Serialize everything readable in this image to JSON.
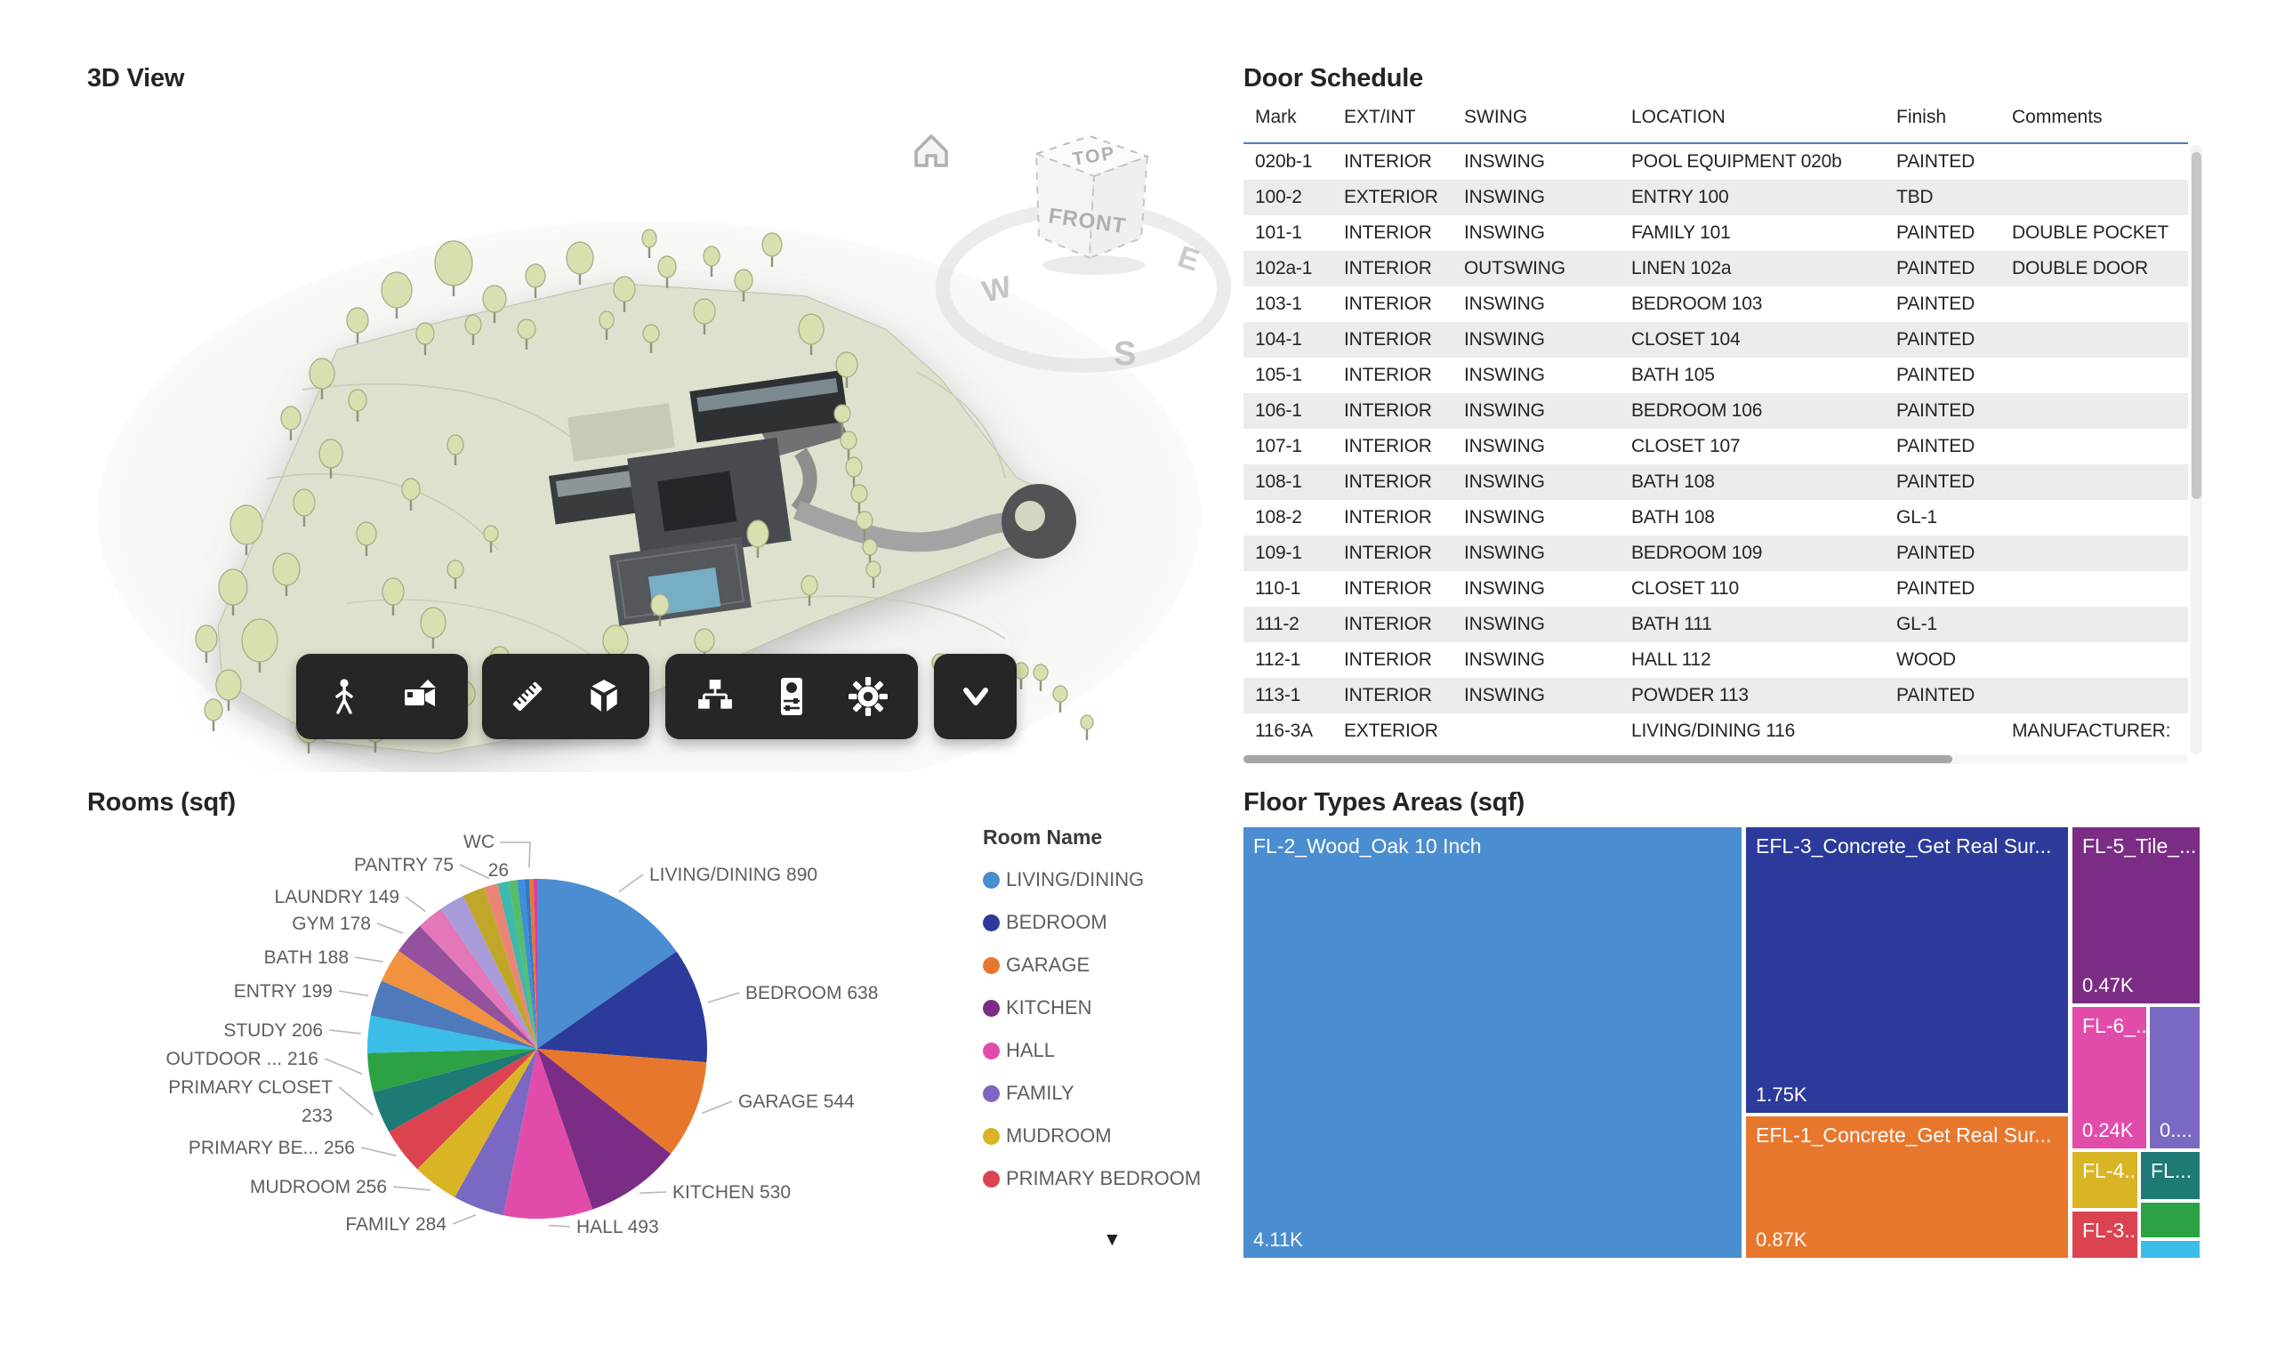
{
  "panels": {
    "view3d": {
      "title": "3D View",
      "home_icon": "home-icon",
      "view_cube": {
        "top": "TOP",
        "front": "FRONT",
        "west": "W",
        "east": "E",
        "south": "S"
      },
      "toolbar": {
        "groups": [
          {
            "icons": [
              "person-icon",
              "video-camera-icon"
            ]
          },
          {
            "icons": [
              "ruler-icon",
              "cube-3d-icon"
            ]
          },
          {
            "icons": [
              "hierarchy-icon",
              "properties-panel-icon",
              "gear-icon"
            ]
          },
          {
            "icons": [
              "chevron-down-icon"
            ]
          }
        ]
      }
    },
    "door_schedule": {
      "title": "Door Schedule",
      "columns": [
        "Mark",
        "EXT/INT",
        "SWING",
        "LOCATION",
        "Finish",
        "Comments"
      ],
      "rows": [
        [
          "020b-1",
          "INTERIOR",
          "INSWING",
          "POOL EQUIPMENT 020b",
          "PAINTED",
          ""
        ],
        [
          "100-2",
          "EXTERIOR",
          "INSWING",
          "ENTRY 100",
          "TBD",
          ""
        ],
        [
          "101-1",
          "INTERIOR",
          "INSWING",
          "FAMILY 101",
          "PAINTED",
          "DOUBLE POCKET"
        ],
        [
          "102a-1",
          "INTERIOR",
          "OUTSWING",
          "LINEN 102a",
          "PAINTED",
          "DOUBLE DOOR"
        ],
        [
          "103-1",
          "INTERIOR",
          "INSWING",
          "BEDROOM 103",
          "PAINTED",
          ""
        ],
        [
          "104-1",
          "INTERIOR",
          "INSWING",
          "CLOSET 104",
          "PAINTED",
          ""
        ],
        [
          "105-1",
          "INTERIOR",
          "INSWING",
          "BATH 105",
          "PAINTED",
          ""
        ],
        [
          "106-1",
          "INTERIOR",
          "INSWING",
          "BEDROOM 106",
          "PAINTED",
          ""
        ],
        [
          "107-1",
          "INTERIOR",
          "INSWING",
          "CLOSET 107",
          "PAINTED",
          ""
        ],
        [
          "108-1",
          "INTERIOR",
          "INSWING",
          "BATH 108",
          "PAINTED",
          ""
        ],
        [
          "108-2",
          "INTERIOR",
          "INSWING",
          "BATH 108",
          "GL-1",
          ""
        ],
        [
          "109-1",
          "INTERIOR",
          "INSWING",
          "BEDROOM 109",
          "PAINTED",
          ""
        ],
        [
          "110-1",
          "INTERIOR",
          "INSWING",
          "CLOSET 110",
          "PAINTED",
          ""
        ],
        [
          "111-2",
          "INTERIOR",
          "INSWING",
          "BATH 111",
          "GL-1",
          ""
        ],
        [
          "112-1",
          "INTERIOR",
          "INSWING",
          "HALL 112",
          "WOOD",
          ""
        ],
        [
          "113-1",
          "INTERIOR",
          "INSWING",
          "POWDER 113",
          "PAINTED",
          ""
        ],
        [
          "116-3A",
          "EXTERIOR",
          "",
          "LIVING/DINING 116",
          "",
          "MANUFACTURER:"
        ]
      ]
    },
    "rooms": {
      "title": "Rooms (sqf)",
      "legend_title": "Room Name",
      "legend": [
        {
          "label": "LIVING/DINING",
          "color": "#4A8DD0"
        },
        {
          "label": "BEDROOM",
          "color": "#2B3A9B"
        },
        {
          "label": "GARAGE",
          "color": "#E8772E"
        },
        {
          "label": "KITCHEN",
          "color": "#7B2D85"
        },
        {
          "label": "HALL",
          "color": "#E14CAB"
        },
        {
          "label": "FAMILY",
          "color": "#7A68C2"
        },
        {
          "label": "MUDROOM",
          "color": "#D9B526"
        },
        {
          "label": "PRIMARY BEDROOM",
          "color": "#DC4350"
        }
      ],
      "more_icon": "chevron-down-icon",
      "more_glyph": "▼"
    },
    "floor_types": {
      "title": "Floor Types Areas (sqf)"
    }
  },
  "chart_data": [
    {
      "type": "pie",
      "title": "Rooms (sqf)",
      "value_unit": "sqf",
      "legend_position": "right",
      "slices": [
        {
          "label": "LIVING/DINING",
          "value": 890,
          "color": "#4A8DD0"
        },
        {
          "label": "BEDROOM",
          "value": 638,
          "color": "#2B3A9B"
        },
        {
          "label": "GARAGE",
          "value": 544,
          "color": "#E8772E"
        },
        {
          "label": "KITCHEN",
          "value": 530,
          "color": "#7B2D85"
        },
        {
          "label": "HALL",
          "value": 493,
          "color": "#E14CAB"
        },
        {
          "label": "FAMILY",
          "value": 284,
          "color": "#7A68C2"
        },
        {
          "label": "MUDROOM",
          "value": 256,
          "color": "#D9B526"
        },
        {
          "label": "PRIMARY BE...",
          "value": 256,
          "color": "#DC4350"
        },
        {
          "label": "PRIMARY CLOSET",
          "value": 233,
          "color": "#1D7A74",
          "two_line": true
        },
        {
          "label": "OUTDOOR ...",
          "value": 216,
          "color": "#2CA244"
        },
        {
          "label": "STUDY",
          "value": 206,
          "color": "#3ABEE8"
        },
        {
          "label": "ENTRY",
          "value": 199,
          "color": "#4E79BC"
        },
        {
          "label": "BATH",
          "value": 188,
          "color": "#F0923F"
        },
        {
          "label": "GYM",
          "value": 178,
          "color": "#94519E"
        },
        {
          "label": "LAUNDRY",
          "value": 149,
          "color": "#E377B7"
        },
        {
          "label": "",
          "value": 140,
          "color": "#A89BD9",
          "estimated": true
        },
        {
          "label": "",
          "value": 125,
          "color": "#C0A72A",
          "estimated": true
        },
        {
          "label": "PANTRY",
          "value": 75,
          "color": "#EA8475"
        },
        {
          "label": "",
          "value": 60,
          "color": "#3FB8AD",
          "estimated": true
        },
        {
          "label": "",
          "value": 48,
          "color": "#56BD68",
          "estimated": true
        },
        {
          "label": "",
          "value": 40,
          "color": "#3E8ED8",
          "estimated": true
        },
        {
          "label": "WC",
          "value": 26,
          "color": "#2E7BC4",
          "two_line": true
        },
        {
          "label": "",
          "value": 24,
          "color": "#E8772E",
          "estimated": true
        },
        {
          "label": "",
          "value": 20,
          "color": "#D63FA6",
          "estimated": true
        }
      ]
    },
    {
      "type": "treemap",
      "title": "Floor Types Areas (sqf)",
      "items": [
        {
          "label": "FL-2_Wood_Oak 10 Inch",
          "value_label": "4.11K",
          "value": 4110,
          "color": "#4A8DD0"
        },
        {
          "label": "EFL-3_Concrete_Get Real Sur...",
          "value_label": "1.75K",
          "value": 1750,
          "color": "#2B3A9B"
        },
        {
          "label": "EFL-1_Concrete_Get Real Sur...",
          "value_label": "0.87K",
          "value": 870,
          "color": "#E8772E"
        },
        {
          "label": "FL-5_Tile_...",
          "value_label": "0.47K",
          "value": 470,
          "color": "#7B2D85"
        },
        {
          "label": "FL-6_...",
          "value_label": "0.24K",
          "value": 240,
          "color": "#E14CAB"
        },
        {
          "label": "",
          "value_label": "0....",
          "value": 200,
          "color": "#7A68C2",
          "estimated": true
        },
        {
          "label": "FL-4...",
          "value_label": "",
          "value": 150,
          "color": "#D9B526",
          "estimated": true
        },
        {
          "label": "FL...",
          "value_label": "",
          "value": 120,
          "color": "#1D7A74",
          "estimated": true
        },
        {
          "label": "FL-3...",
          "value_label": "",
          "value": 110,
          "color": "#DC4350",
          "estimated": true
        },
        {
          "label": "",
          "value_label": "",
          "value": 90,
          "color": "#2CA244",
          "estimated": true
        },
        {
          "label": "",
          "value_label": "",
          "value": 40,
          "color": "#3ABEE8",
          "estimated": true
        }
      ]
    }
  ]
}
